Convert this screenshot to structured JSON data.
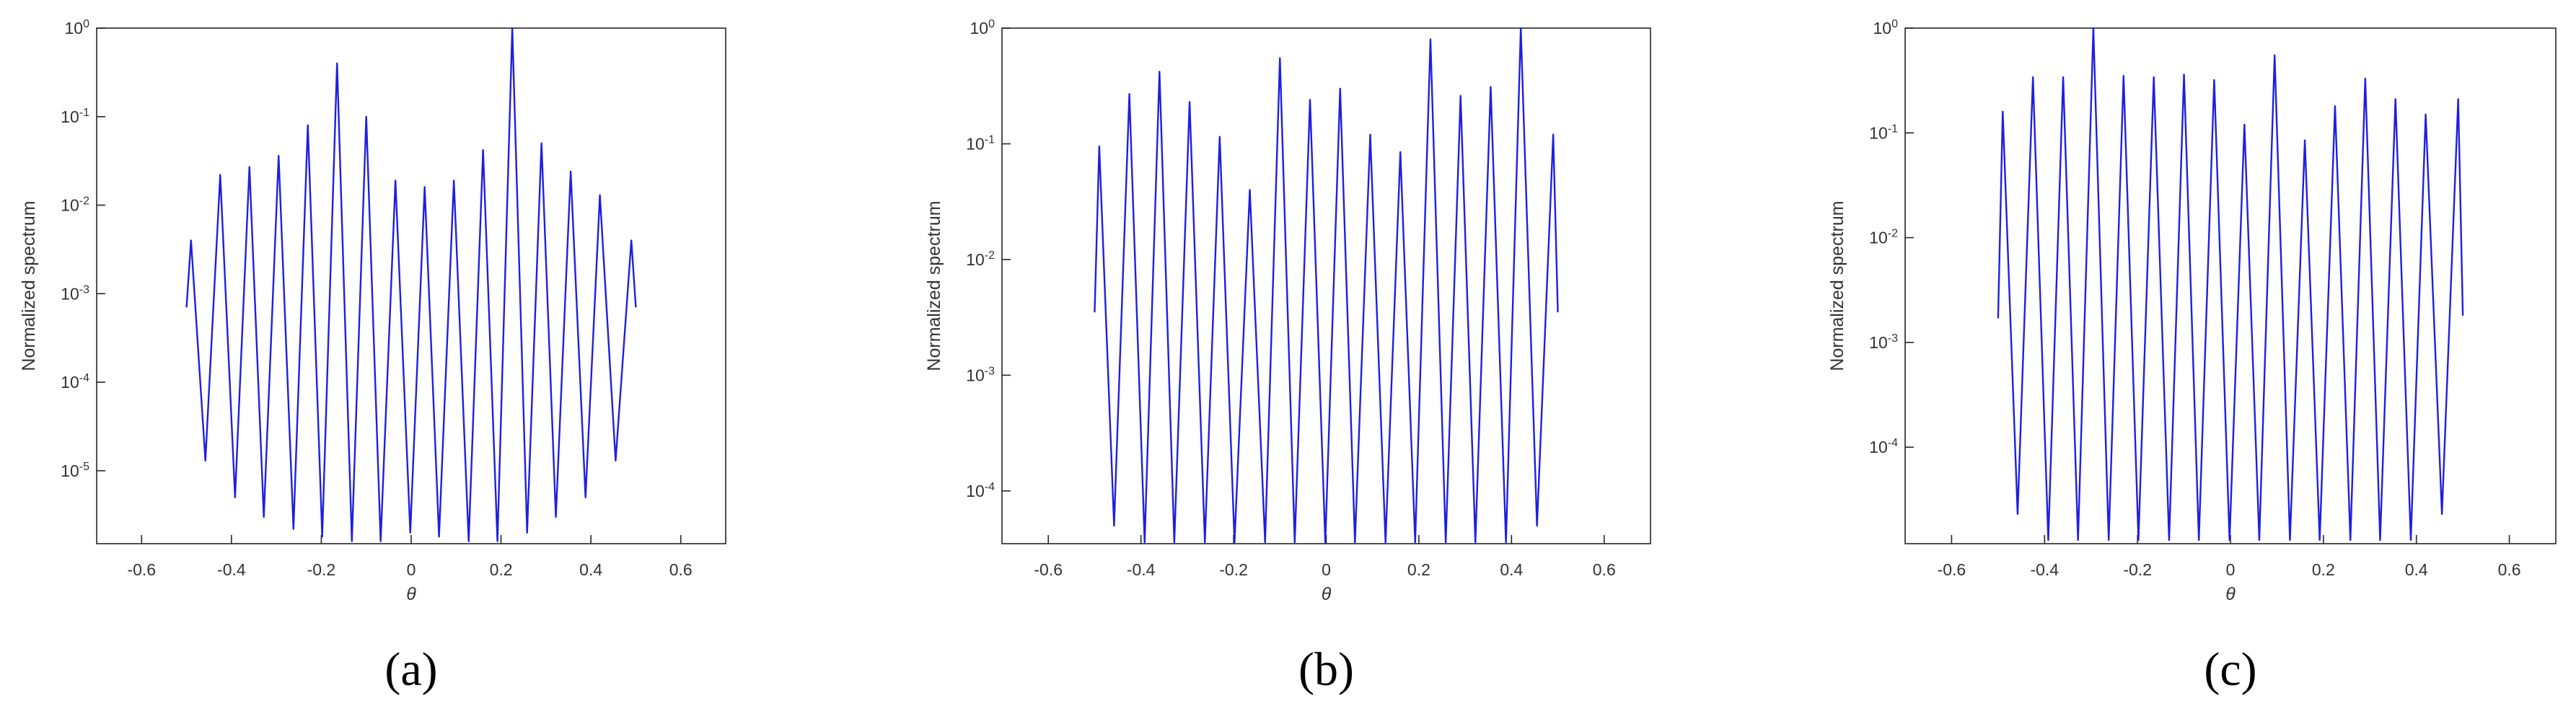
{
  "chart_data": [
    {
      "type": "line",
      "caption": "(a)",
      "xlabel": "θ",
      "ylabel": "Normalized spectrum",
      "log_y": true,
      "grid": false,
      "color": "#1f1fe0",
      "xlim": [
        -0.7,
        0.7
      ],
      "xticks": [
        -0.6,
        -0.4,
        -0.2,
        0,
        0.2,
        0.4,
        0.6
      ],
      "ylim": [
        1.5e-06,
        1
      ],
      "yticks": [
        {
          "value": 1e-05,
          "label": "10^-5"
        },
        {
          "value": 0.0001,
          "label": "10^-4"
        },
        {
          "value": 0.001,
          "label": "10^-3"
        },
        {
          "value": 0.01,
          "label": "10^-2"
        },
        {
          "value": 0.1,
          "label": "10^-1"
        },
        {
          "value": 1,
          "label": "10^0"
        }
      ],
      "x": [
        -0.5,
        -0.49,
        -0.458,
        -0.425,
        -0.392,
        -0.36,
        -0.328,
        -0.295,
        -0.262,
        -0.23,
        -0.198,
        -0.165,
        -0.132,
        -0.1,
        -0.068,
        -0.035,
        -0.002,
        0.03,
        0.062,
        0.095,
        0.128,
        0.16,
        0.192,
        0.225,
        0.258,
        0.29,
        0.322,
        0.355,
        0.388,
        0.42,
        0.455,
        0.49,
        0.5
      ],
      "values": [
        0.0007,
        0.004,
        1.3e-05,
        0.022,
        5e-06,
        0.027,
        3e-06,
        0.036,
        2.2e-06,
        0.08,
        1.8e-06,
        0.4,
        1.6e-06,
        0.1,
        1.6e-06,
        0.019,
        2e-06,
        0.016,
        1.8e-06,
        0.019,
        1.6e-06,
        0.042,
        1.6e-06,
        1,
        2e-06,
        0.05,
        3e-06,
        0.024,
        5e-06,
        0.013,
        1.3e-05,
        0.004,
        0.0007
      ]
    },
    {
      "type": "line",
      "caption": "(b)",
      "xlabel": "θ",
      "ylabel": "Normalized spectrum",
      "log_y": true,
      "grid": false,
      "color": "#1f1fe0",
      "xlim": [
        -0.7,
        0.7
      ],
      "xticks": [
        -0.6,
        -0.4,
        -0.2,
        0,
        0.2,
        0.4,
        0.6
      ],
      "ylim": [
        3.5e-05,
        1
      ],
      "yticks": [
        {
          "value": 0.0001,
          "label": "10^-4"
        },
        {
          "value": 0.001,
          "label": "10^-3"
        },
        {
          "value": 0.01,
          "label": "10^-2"
        },
        {
          "value": 0.1,
          "label": "10^-1"
        },
        {
          "value": 1,
          "label": "10^0"
        }
      ],
      "x": [
        -0.5,
        -0.49,
        -0.458,
        -0.425,
        -0.392,
        -0.36,
        -0.328,
        -0.295,
        -0.262,
        -0.23,
        -0.198,
        -0.165,
        -0.132,
        -0.1,
        -0.068,
        -0.035,
        -0.002,
        0.03,
        0.062,
        0.095,
        0.128,
        0.16,
        0.192,
        0.225,
        0.258,
        0.29,
        0.322,
        0.355,
        0.388,
        0.42,
        0.455,
        0.49,
        0.5
      ],
      "values": [
        0.0035,
        0.095,
        5e-05,
        0.27,
        3.6e-05,
        0.42,
        3.6e-05,
        0.23,
        3.6e-05,
        0.115,
        3.6e-05,
        0.04,
        3.6e-05,
        0.55,
        3.6e-05,
        0.24,
        3.6e-05,
        0.3,
        3.6e-05,
        0.12,
        3.6e-05,
        0.085,
        3.6e-05,
        0.8,
        3.6e-05,
        0.26,
        3.6e-05,
        0.31,
        3.6e-05,
        1,
        5e-05,
        0.12,
        0.0035
      ]
    },
    {
      "type": "line",
      "caption": "(c)",
      "xlabel": "θ",
      "ylabel": "Normalized spectrum",
      "log_y": true,
      "grid": false,
      "color": "#1f1fe0",
      "xlim": [
        -0.7,
        0.7
      ],
      "xticks": [
        -0.6,
        -0.4,
        -0.2,
        0,
        0.2,
        0.4,
        0.6
      ],
      "ylim": [
        1.2e-05,
        1
      ],
      "yticks": [
        {
          "value": 0.0001,
          "label": "10^-4"
        },
        {
          "value": 0.001,
          "label": "10^-3"
        },
        {
          "value": 0.01,
          "label": "10^-2"
        },
        {
          "value": 0.1,
          "label": "10^-1"
        },
        {
          "value": 1,
          "label": "10^0"
        }
      ],
      "x": [
        -0.5,
        -0.49,
        -0.458,
        -0.425,
        -0.392,
        -0.36,
        -0.328,
        -0.295,
        -0.262,
        -0.23,
        -0.198,
        -0.165,
        -0.132,
        -0.1,
        -0.068,
        -0.035,
        -0.002,
        0.03,
        0.062,
        0.095,
        0.128,
        0.16,
        0.192,
        0.225,
        0.258,
        0.29,
        0.322,
        0.355,
        0.388,
        0.42,
        0.455,
        0.49,
        0.5
      ],
      "values": [
        0.0017,
        0.16,
        2.3e-05,
        0.34,
        1.3e-05,
        0.34,
        1.3e-05,
        1,
        1.3e-05,
        0.35,
        1.3e-05,
        0.34,
        1.3e-05,
        0.36,
        1.3e-05,
        0.32,
        1.3e-05,
        0.12,
        1.3e-05,
        0.55,
        1.3e-05,
        0.085,
        1.3e-05,
        0.18,
        1.3e-05,
        0.33,
        1.3e-05,
        0.21,
        1.3e-05,
        0.15,
        2.3e-05,
        0.21,
        0.0018
      ]
    }
  ]
}
